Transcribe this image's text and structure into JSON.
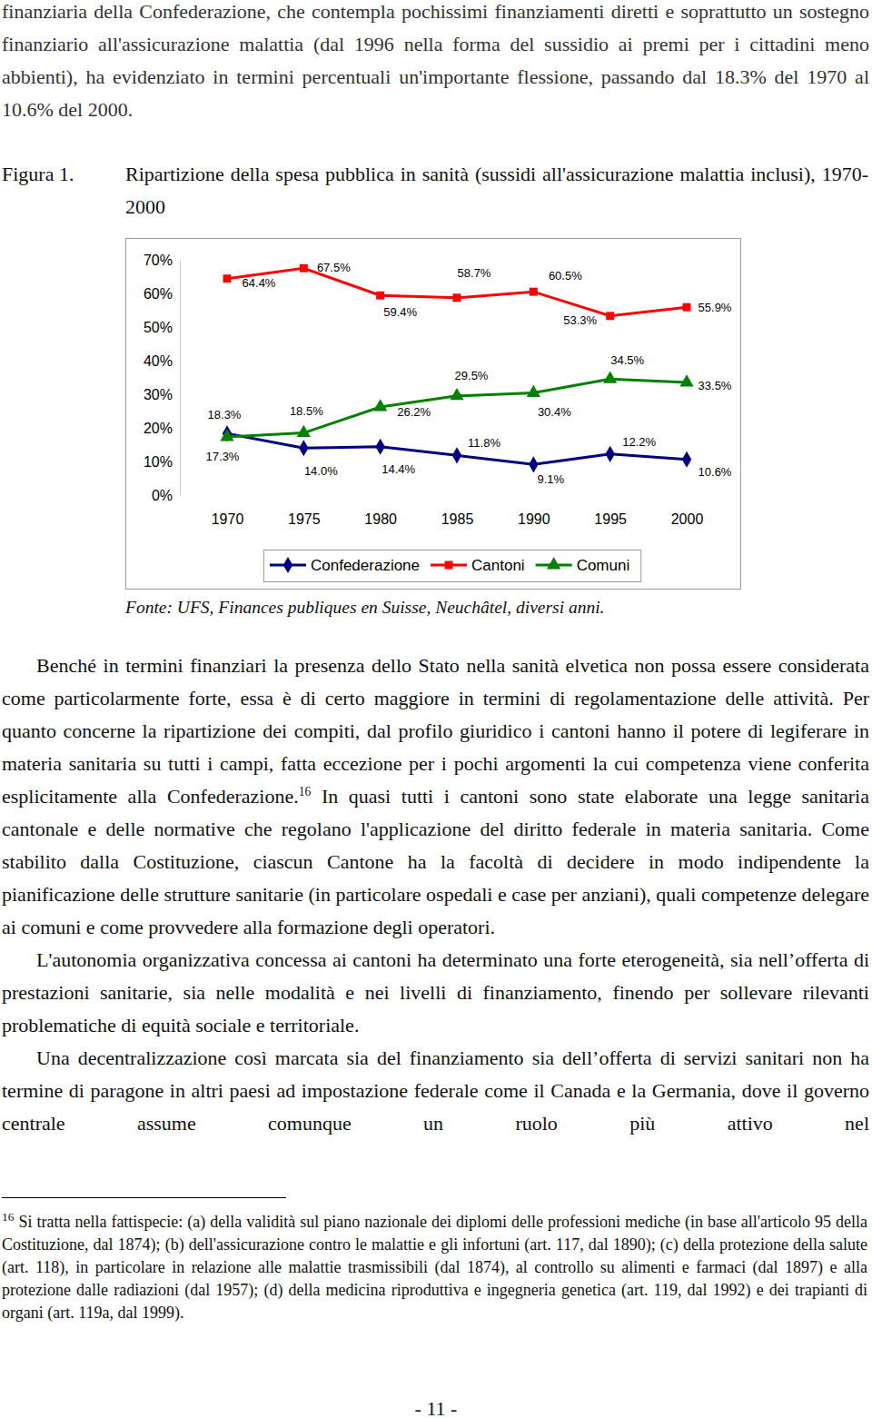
{
  "document": {
    "intro": "finanziaria della Confederazione, che contempla pochissimi finanziamenti diretti e soprattutto un sostegno finanziario all'assicurazione malattia (dal 1996 nella forma del sussidio ai premi per i cittadini meno abbienti), ha evidenziato in termini percentuali un'importante flessione, passando dal 18.3% del 1970 al 10.6% del 2000.",
    "figure_label": "Figura 1.",
    "source": "Fonte: UFS, Finances publiques en Suisse, Neuchâtel, diversi anni.",
    "body": [
      {
        "runs": [
          {
            "text": "Benché in termini finanziari la presenza dello Stato nella sanità elvetica non possa essere considerata come particolarmente forte, essa è di certo maggiore in termini di regolamentazione delle attività. Per quanto concerne la ripartizione dei compiti, dal profilo giuridico i cantoni hanno il potere di legiferare in materia sanitaria su tutti i campi, fatta eccezione per i pochi argomenti la cui competenza viene conferita esplicitamente alla Confederazione."
          },
          {
            "sup": "16"
          },
          {
            "text": " In quasi tutti i cantoni sono state elaborate una legge sanitaria cantonale e delle normative che regolano l'applicazione del diritto federale in materia sanitaria. Come stabilito dalla Costituzione, ciascun Cantone ha la facoltà di decidere in modo indipendente la pianificazione delle strutture sanitarie (in particolare ospedali e case per anziani), quali competenze delegare ai comuni e come provvedere alla formazione degli operatori."
          }
        ]
      },
      {
        "runs": [
          {
            "text": "L'autonomia organizzativa concessa ai cantoni ha determinato una forte eterogeneità, sia nell’offerta di prestazioni sanitarie, sia nelle modalità e nei livelli di finanziamento, finendo per sollevare rilevanti problematiche di equità sociale e territoriale."
          }
        ]
      },
      {
        "runs": [
          {
            "text": "Una decentralizzazione così marcata sia del finanziamento sia dell’offerta di servizi sanitari non ha termine di paragone in altri paesi ad impostazione federale come il Canada e la Germania, dove il governo centrale assume comunque un ruolo più attivo nel"
          }
        ]
      }
    ],
    "footnote": {
      "marker": "16",
      "text": "Si tratta nella fattispecie: (a) della validità sul piano nazionale dei diplomi delle professioni mediche (in base all'articolo 95 della Costituzione, dal 1874); (b) dell'assicurazione contro le malattie e gli infortuni (art. 117, dal 1890); (c) della protezione della salute (art. 118), in particolare in relazione alle malattie trasmissibili (dal 1874), al controllo su alimenti e farmaci (dal 1897) e alla protezione dalle radiazioni (dal 1957); (d) della medicina riproduttiva e ingegneria genetica (art. 119, dal 1992) e dei trapianti di organi (art. 119a, dal 1999)."
    },
    "page_number": "- 11 -"
  },
  "chart_data": {
    "type": "line",
    "title": "Ripartizione della spesa pubblica in sanità (sussidi all'assicurazione malattia inclusi), 1970-2000",
    "categories": [
      "1970",
      "1975",
      "1980",
      "1985",
      "1990",
      "1995",
      "2000"
    ],
    "ylim": [
      0,
      70
    ],
    "yticks": [
      {
        "value": 0,
        "label": "0%"
      },
      {
        "value": 10,
        "label": "10%"
      },
      {
        "value": 20,
        "label": "20%"
      },
      {
        "value": 30,
        "label": "30%"
      },
      {
        "value": 40,
        "label": "40%"
      },
      {
        "value": 50,
        "label": "50%"
      },
      {
        "value": 60,
        "label": "60%"
      },
      {
        "value": 70,
        "label": "70%"
      }
    ],
    "grid": false,
    "legend": "bottom",
    "data_labels": true,
    "series": [
      {
        "name": "Confederazione",
        "color": "#000080",
        "marker": "diamond",
        "values": [
          18.3,
          14.0,
          14.4,
          11.8,
          9.1,
          12.2,
          10.6
        ],
        "value_labels": [
          "18.3%",
          "14.0%",
          "14.4%",
          "11.8%",
          "9.1%",
          "12.2%",
          "10.6%"
        ]
      },
      {
        "name": "Cantoni",
        "color": "#ff0000",
        "marker": "square",
        "values": [
          64.4,
          67.5,
          59.4,
          58.7,
          60.5,
          53.3,
          55.9
        ],
        "value_labels": [
          "64.4%",
          "67.5%",
          "59.4%",
          "58.7%",
          "60.5%",
          "53.3%",
          "55.9%"
        ]
      },
      {
        "name": "Comuni",
        "color": "#008000",
        "marker": "triangle",
        "values": [
          17.3,
          18.5,
          26.2,
          29.5,
          30.4,
          34.5,
          33.5
        ],
        "value_labels": [
          "17.3%",
          "18.5%",
          "26.2%",
          "29.5%",
          "30.4%",
          "34.5%",
          "33.5%"
        ]
      }
    ]
  }
}
